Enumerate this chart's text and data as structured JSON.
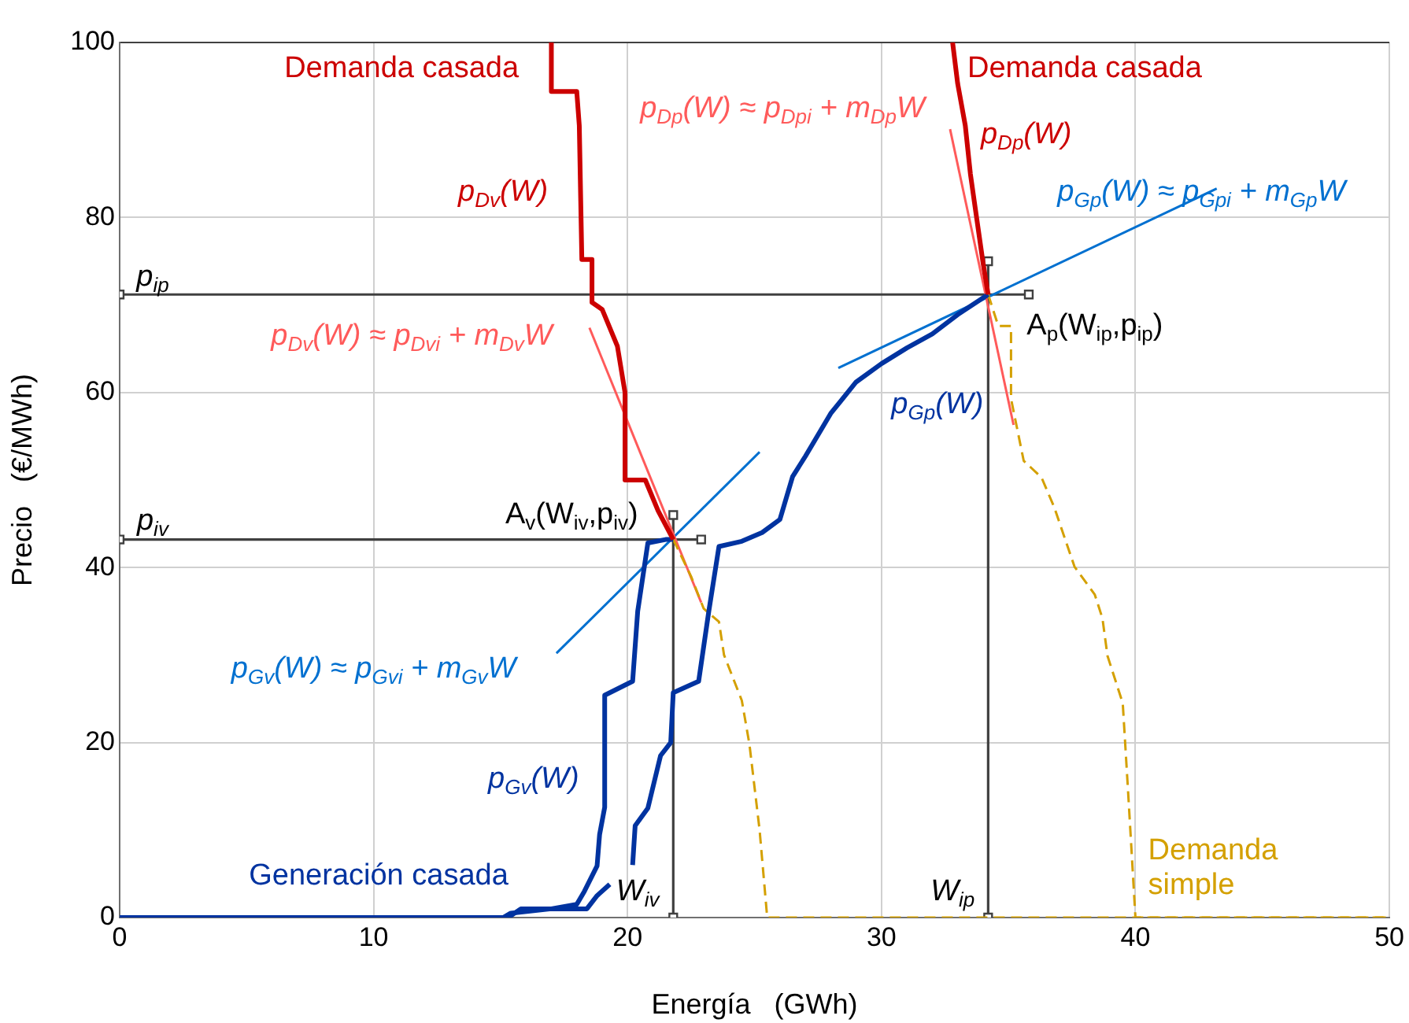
{
  "chart_data": {
    "type": "line",
    "xlabel": "Energía   (GWh)",
    "ylabel": "Precio   (€/MWh)",
    "xlim": [
      0,
      50
    ],
    "xticks": [
      0,
      10,
      20,
      30,
      40,
      50
    ],
    "ylim": [
      0,
      100
    ],
    "yticks": [
      0,
      20,
      40,
      60,
      80,
      100
    ],
    "grid": true,
    "marker": "none",
    "line_style": "solid",
    "series": [
      {
        "name": "Demanda casada",
        "color": "#cc0000",
        "x": [
          17.0,
          17.0,
          18.0,
          18.1,
          18.2,
          18.6,
          18.6,
          19.0,
          19.6,
          19.9,
          19.9,
          20.7,
          21.2,
          21.8
        ],
        "values": [
          100,
          94.4,
          94.4,
          90.5,
          75.2,
          75.2,
          70.3,
          69.5,
          65.3,
          60,
          50,
          50,
          46.5,
          43.2
        ]
      },
      {
        "name": "Demanda casada",
        "color": "#cc0000",
        "x": [
          32.8,
          33.0,
          33.3,
          33.5,
          33.7,
          34.0,
          34.2
        ],
        "values": [
          100,
          95.3,
          90.5,
          85,
          80.9,
          74.8,
          71.2
        ]
      },
      {
        "name": "Generación casada",
        "color": "#0033a0",
        "x": [
          0,
          15.1,
          15.4,
          17.0,
          18.0,
          18.3,
          18.8,
          18.9,
          19.1,
          19.1,
          20.2,
          20.4,
          20.8,
          21.5,
          21.8
        ],
        "values": [
          0,
          0,
          0.5,
          1,
          1.5,
          3,
          5.9,
          9.5,
          12.6,
          25.4,
          27,
          35,
          42.8,
          43.2,
          43.2
        ]
      },
      {
        "color": "#0033a0",
        "x": [
          0,
          15.3,
          15.8,
          18.4,
          18.8,
          19.3,
          19.8,
          20.2,
          20.3,
          20.8,
          21.3,
          21.7,
          21.8,
          22.8,
          23.2,
          23.6,
          24.5,
          25.3,
          26,
          26.5,
          27,
          28,
          29,
          30,
          31,
          32,
          33,
          34.2
        ],
        "values": [
          0,
          0,
          1,
          1,
          2.5,
          3.8,
          null,
          6,
          10.5,
          12.5,
          18.5,
          20,
          25.7,
          27,
          35,
          42.4,
          43,
          44,
          45.5,
          50.4,
          52.7,
          57.6,
          61.2,
          63.3,
          65.1,
          66.7,
          68.9,
          71.2
        ]
      },
      {
        "color": "#d4a000",
        "line_style": "dashed",
        "x": [
          21.8,
          22.5,
          23.0,
          23.6,
          23.8,
          24.5,
          24.8,
          25.2,
          25.5,
          50
        ],
        "values": [
          43.2,
          39,
          35.3,
          33.8,
          30,
          24.8,
          19.8,
          10,
          0,
          0
        ]
      },
      {
        "name": "Demanda simple",
        "color": "#d4a000",
        "line_style": "dashed",
        "x": [
          34.2,
          34.6,
          35.1,
          35.1,
          35.6,
          36.3,
          36.8,
          37.6,
          38.4,
          38.7,
          38.9,
          39.5,
          39.7,
          40.0,
          50
        ],
        "values": [
          71.2,
          67.6,
          67.6,
          59.3,
          52.2,
          50.3,
          46.9,
          40.1,
          36.9,
          34.2,
          29.9,
          24.5,
          14.9,
          0,
          0
        ]
      },
      {
        "color": "#ff5a5a",
        "x": [
          18.5,
          22.9
        ],
        "values": [
          67.4,
          36.0
        ]
      },
      {
        "color": "#ff5a5a",
        "x": [
          32.7,
          35.2
        ],
        "values": [
          90.1,
          56.3
        ]
      },
      {
        "color": "#0070d0",
        "x": [
          17.2,
          25.2
        ],
        "values": [
          30.2,
          53.2
        ]
      },
      {
        "color": "#0070d0",
        "x": [
          28.3,
          43.2
        ],
        "values": [
          62.8,
          83.3
        ]
      },
      {
        "color": "#404040",
        "marker": "square",
        "x": [
          0,
          35.8
        ],
        "values": [
          71.2,
          71.2
        ]
      },
      {
        "color": "#404040",
        "marker": "square",
        "x": [
          0,
          22.9
        ],
        "values": [
          43.2,
          43.2
        ]
      },
      {
        "color": "#404040",
        "marker": "square",
        "x": [
          21.8,
          21.8
        ],
        "values": [
          0,
          46
        ]
      },
      {
        "color": "#404040",
        "marker": "square",
        "x": [
          34.2,
          34.2
        ],
        "values": [
          0,
          75
        ]
      }
    ],
    "annotations": [
      "p$_{Dv}$(W)",
      "p$_{Dp}$(W)",
      "p$_{Dp}$(W) ≈ p$_{Dpi}$ + m$_{Dp}$W",
      "p$_{Gp}$(W) ≈ p$_{Gpi}$ + m$_{Gp}$W",
      "p$_{Dv}$(W) ≈ p$_{Dvi}$ + m$_{Dv}$W",
      "p$_{Gp}$(W)",
      "A$_{p}$(W$_{ip}$,p$_{ip}$)",
      "A$_{v}$(W$_{iv}$,p$_{iv}$)",
      "p$_{Gv}$(W) ≈ p$_{Gvi}$ + m$_{Gv}$W",
      "p$_{Gv}$(W)",
      "W$_{iv}$",
      "W$_{ip}$",
      "p$_{ip}$",
      "p$_{iv}$"
    ]
  }
}
